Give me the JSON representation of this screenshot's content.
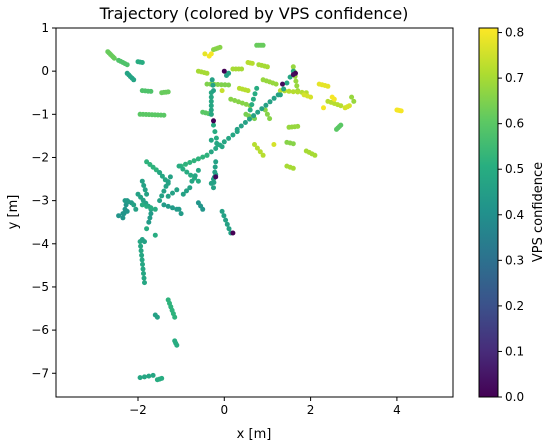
{
  "chart_data": {
    "type": "scatter",
    "title": "Trajectory (colored by VPS confidence)",
    "xlabel": "x [m]",
    "ylabel": "y [m]",
    "xlim": [
      -3.9,
      5.3
    ],
    "ylim": [
      -7.55,
      1.0
    ],
    "xticks": [
      -2,
      0,
      2,
      4
    ],
    "yticks": [
      1,
      0,
      -1,
      -2,
      -3,
      -4,
      -5,
      -6,
      -7
    ],
    "grid": false,
    "colorbar": {
      "label": "VPS confidence",
      "colormap": "viridis",
      "range": [
        0.0,
        0.81
      ],
      "ticks": [
        0.0,
        0.1,
        0.2,
        0.3,
        0.4,
        0.5,
        0.6,
        0.7,
        0.8
      ]
    },
    "segments": [
      {
        "from": [
          -2.7,
          0.45
        ],
        "to": [
          -2.55,
          0.3
        ],
        "n": 6,
        "c": 0.62
      },
      {
        "from": [
          -2.45,
          0.25
        ],
        "to": [
          -2.25,
          0.15
        ],
        "n": 5,
        "c": 0.58
      },
      {
        "from": [
          -2.25,
          -0.05
        ],
        "to": [
          -2.1,
          -0.2
        ],
        "n": 5,
        "c": 0.47
      },
      {
        "from": [
          -2.0,
          0.22
        ],
        "to": [
          -1.9,
          0.2
        ],
        "n": 3,
        "c": 0.5
      },
      {
        "from": [
          -1.9,
          -0.45
        ],
        "to": [
          -1.7,
          -0.47
        ],
        "n": 4,
        "c": 0.58
      },
      {
        "from": [
          -1.95,
          -1.0
        ],
        "to": [
          -1.4,
          -1.02
        ],
        "n": 9,
        "c": 0.6
      },
      {
        "from": [
          -1.45,
          -0.5
        ],
        "to": [
          -1.3,
          -0.48
        ],
        "n": 4,
        "c": 0.62
      },
      {
        "from": [
          -0.25,
          0.5
        ],
        "to": [
          -0.1,
          0.55
        ],
        "n": 4,
        "c": 0.66
      },
      {
        "from": [
          -0.6,
          0.0
        ],
        "to": [
          -0.4,
          -0.05
        ],
        "n": 4,
        "c": 0.7
      },
      {
        "from": [
          -0.3,
          0.4
        ],
        "to": [
          -0.35,
          0.35
        ],
        "n": 2,
        "c": 0.8
      },
      {
        "from": [
          0.75,
          0.6
        ],
        "to": [
          0.9,
          0.6
        ],
        "n": 4,
        "c": 0.62
      },
      {
        "from": [
          0.2,
          0.05
        ],
        "to": [
          0.4,
          0.05
        ],
        "n": 4,
        "c": 0.7
      },
      {
        "from": [
          0.55,
          0.2
        ],
        "to": [
          0.65,
          0.18
        ],
        "n": 3,
        "c": 0.72
      },
      {
        "from": [
          0.8,
          0.15
        ],
        "to": [
          1.0,
          0.1
        ],
        "n": 4,
        "c": 0.7
      },
      {
        "from": [
          0.9,
          -0.2
        ],
        "to": [
          1.2,
          -0.3
        ],
        "n": 5,
        "c": 0.68
      },
      {
        "from": [
          -0.4,
          -0.3
        ],
        "to": [
          0.1,
          -0.32
        ],
        "n": 7,
        "c": 0.65
      },
      {
        "from": [
          0.35,
          -0.4
        ],
        "to": [
          0.55,
          -0.45
        ],
        "n": 4,
        "c": 0.72
      },
      {
        "from": [
          0.15,
          -0.65
        ],
        "to": [
          0.6,
          -0.8
        ],
        "n": 6,
        "c": 0.66
      },
      {
        "from": [
          0.5,
          -1.0
        ],
        "to": [
          0.7,
          -1.1
        ],
        "n": 4,
        "c": 0.64
      },
      {
        "from": [
          -0.5,
          -0.95
        ],
        "to": [
          -0.3,
          -1.0
        ],
        "n": 4,
        "c": 0.6
      },
      {
        "from": [
          1.6,
          0.1
        ],
        "to": [
          1.7,
          -0.45
        ],
        "n": 6,
        "c": 0.68
      },
      {
        "from": [
          1.3,
          -0.45
        ],
        "to": [
          1.9,
          -0.5
        ],
        "n": 7,
        "c": 0.72
      },
      {
        "from": [
          1.85,
          -0.55
        ],
        "to": [
          2.0,
          -0.6
        ],
        "n": 3,
        "c": 0.76
      },
      {
        "from": [
          2.2,
          -0.3
        ],
        "to": [
          2.4,
          -0.35
        ],
        "n": 4,
        "c": 0.78
      },
      {
        "from": [
          2.4,
          -0.7
        ],
        "to": [
          2.7,
          -0.8
        ],
        "n": 5,
        "c": 0.72
      },
      {
        "from": [
          2.8,
          -0.85
        ],
        "to": [
          2.9,
          -0.8
        ],
        "n": 3,
        "c": 0.76
      },
      {
        "from": [
          2.95,
          -0.6
        ],
        "to": [
          3.0,
          -0.7
        ],
        "n": 2,
        "c": 0.68
      },
      {
        "from": [
          2.6,
          -1.35
        ],
        "to": [
          2.7,
          -1.25
        ],
        "n": 4,
        "c": 0.6
      },
      {
        "from": [
          4.0,
          -0.9
        ],
        "to": [
          4.1,
          -0.92
        ],
        "n": 4,
        "c": 0.8
      },
      {
        "from": [
          2.5,
          -0.6
        ],
        "to": [
          2.55,
          -0.65
        ],
        "n": 2,
        "c": 0.8
      },
      {
        "from": [
          1.5,
          -1.3
        ],
        "to": [
          1.7,
          -1.28
        ],
        "n": 4,
        "c": 0.68
      },
      {
        "from": [
          1.45,
          -1.65
        ],
        "to": [
          1.6,
          -1.68
        ],
        "n": 3,
        "c": 0.66
      },
      {
        "from": [
          1.9,
          -1.85
        ],
        "to": [
          2.1,
          -1.95
        ],
        "n": 4,
        "c": 0.7
      },
      {
        "from": [
          1.45,
          -2.2
        ],
        "to": [
          1.6,
          -2.25
        ],
        "n": 3,
        "c": 0.7
      },
      {
        "from": [
          0.7,
          -1.7
        ],
        "to": [
          0.9,
          -1.95
        ],
        "n": 4,
        "c": 0.72
      },
      {
        "from": [
          0.95,
          -0.9
        ],
        "to": [
          1.05,
          -1.1
        ],
        "n": 3,
        "c": 0.66
      },
      {
        "from": [
          -0.3,
          -0.5
        ],
        "to": [
          -0.3,
          -1.0
        ],
        "n": 6,
        "c": 0.48
      },
      {
        "from": [
          -0.25,
          -0.45
        ],
        "to": [
          -0.28,
          -0.2
        ],
        "n": 3,
        "c": 0.46
      },
      {
        "from": [
          0.05,
          -0.1
        ],
        "to": [
          0.1,
          -0.05
        ],
        "n": 2,
        "c": 0.46
      },
      {
        "from": [
          1.6,
          0.0
        ],
        "to": [
          1.3,
          -0.55
        ],
        "n": 5,
        "c": 0.48
      },
      {
        "from": [
          1.25,
          -0.55
        ],
        "to": [
          0.3,
          -1.35
        ],
        "n": 11,
        "c": 0.46
      },
      {
        "from": [
          0.75,
          -0.4
        ],
        "to": [
          0.6,
          -0.9
        ],
        "n": 5,
        "c": 0.5
      },
      {
        "from": [
          0.3,
          -1.4
        ],
        "to": [
          -0.4,
          -1.95
        ],
        "n": 8,
        "c": 0.48
      },
      {
        "from": [
          -0.4,
          -1.95
        ],
        "to": [
          -1.0,
          -2.2
        ],
        "n": 7,
        "c": 0.52
      },
      {
        "from": [
          -0.2,
          -2.1
        ],
        "to": [
          -0.25,
          -2.7
        ],
        "n": 6,
        "c": 0.46
      },
      {
        "from": [
          -0.25,
          -1.25
        ],
        "to": [
          -0.15,
          -1.7
        ],
        "n": 4,
        "c": 0.5
      },
      {
        "from": [
          -0.3,
          -1.6
        ],
        "to": [
          -0.05,
          -1.75
        ],
        "n": 3,
        "c": 0.48
      },
      {
        "from": [
          -1.8,
          -2.1
        ],
        "to": [
          -1.5,
          -2.35
        ],
        "n": 5,
        "c": 0.52
      },
      {
        "from": [
          -1.5,
          -2.35
        ],
        "to": [
          -1.3,
          -2.6
        ],
        "n": 4,
        "c": 0.48
      },
      {
        "from": [
          -1.05,
          -2.2
        ],
        "to": [
          -0.6,
          -2.55
        ],
        "n": 6,
        "c": 0.5
      },
      {
        "from": [
          -1.25,
          -2.45
        ],
        "to": [
          -1.5,
          -3.0
        ],
        "n": 6,
        "c": 0.46
      },
      {
        "from": [
          -1.4,
          -3.1
        ],
        "to": [
          -1.1,
          -3.2
        ],
        "n": 4,
        "c": 0.44
      },
      {
        "from": [
          -1.9,
          -2.55
        ],
        "to": [
          -1.8,
          -2.85
        ],
        "n": 4,
        "c": 0.46
      },
      {
        "from": [
          -2.0,
          -2.85
        ],
        "to": [
          -1.7,
          -3.2
        ],
        "n": 6,
        "c": 0.46
      },
      {
        "from": [
          -1.9,
          -3.1
        ],
        "to": [
          -1.6,
          -3.2
        ],
        "n": 4,
        "c": 0.5
      },
      {
        "from": [
          -2.25,
          -3.0
        ],
        "to": [
          -2.35,
          -3.4
        ],
        "n": 5,
        "c": 0.42
      },
      {
        "from": [
          -2.45,
          -3.35
        ],
        "to": [
          -2.25,
          -3.25
        ],
        "n": 3,
        "c": 0.42
      },
      {
        "from": [
          -2.3,
          -3.0
        ],
        "to": [
          -2.15,
          -3.05
        ],
        "n": 3,
        "c": 0.44
      },
      {
        "from": [
          -2.1,
          -3.1
        ],
        "to": [
          -2.05,
          -3.2
        ],
        "n": 2,
        "c": 0.46
      },
      {
        "from": [
          -1.7,
          -3.3
        ],
        "to": [
          -1.75,
          -3.5
        ],
        "n": 3,
        "c": 0.44
      },
      {
        "from": [
          -1.3,
          -2.9
        ],
        "to": [
          -1.1,
          -2.75
        ],
        "n": 3,
        "c": 0.46
      },
      {
        "from": [
          -1.05,
          -3.2
        ],
        "to": [
          -1.0,
          -3.3
        ],
        "n": 2,
        "c": 0.44
      },
      {
        "from": [
          -0.6,
          -3.05
        ],
        "to": [
          -0.5,
          -3.2
        ],
        "n": 3,
        "c": 0.42
      },
      {
        "from": [
          -0.95,
          -2.85
        ],
        "to": [
          -0.8,
          -2.7
        ],
        "n": 3,
        "c": 0.46
      },
      {
        "from": [
          -0.75,
          -2.55
        ],
        "to": [
          -0.6,
          -2.3
        ],
        "n": 3,
        "c": 0.48
      },
      {
        "from": [
          -0.3,
          -2.6
        ],
        "to": [
          -0.2,
          -2.4
        ],
        "n": 3,
        "c": 0.46
      },
      {
        "from": [
          -0.05,
          -3.25
        ],
        "to": [
          0.15,
          -3.75
        ],
        "n": 6,
        "c": 0.46
      },
      {
        "from": [
          -1.95,
          -3.95
        ],
        "to": [
          -1.85,
          -4.9
        ],
        "n": 10,
        "c": 0.48
      },
      {
        "from": [
          -1.9,
          -3.9
        ],
        "to": [
          -1.85,
          -3.95
        ],
        "n": 2,
        "c": 0.46
      },
      {
        "from": [
          -1.3,
          -5.3
        ],
        "to": [
          -1.15,
          -5.7
        ],
        "n": 6,
        "c": 0.52
      },
      {
        "from": [
          -1.15,
          -6.25
        ],
        "to": [
          -1.1,
          -6.35
        ],
        "n": 3,
        "c": 0.5
      },
      {
        "from": [
          -1.95,
          -7.1
        ],
        "to": [
          -1.65,
          -7.05
        ],
        "n": 4,
        "c": 0.48
      },
      {
        "from": [
          -1.55,
          -7.15
        ],
        "to": [
          -1.45,
          -7.12
        ],
        "n": 3,
        "c": 0.5
      },
      {
        "from": [
          -1.6,
          -5.65
        ],
        "to": [
          -1.55,
          -5.7
        ],
        "n": 2,
        "c": 0.46
      },
      {
        "from": [
          -1.8,
          -3.65
        ],
        "to": [
          -1.6,
          -3.8
        ],
        "n": 2,
        "c": 0.5
      }
    ],
    "singles": [
      {
        "x": 0.0,
        "y": 0.0,
        "c": 0.0
      },
      {
        "x": 1.65,
        "y": -0.05,
        "c": 0.0
      },
      {
        "x": 1.6,
        "y": -0.08,
        "c": 0.02
      },
      {
        "x": 1.35,
        "y": -0.3,
        "c": 0.02
      },
      {
        "x": -0.25,
        "y": -1.15,
        "c": 0.0
      },
      {
        "x": -0.2,
        "y": -2.45,
        "c": 0.02
      },
      {
        "x": 0.2,
        "y": -3.75,
        "c": 0.0
      },
      {
        "x": -0.45,
        "y": 0.4,
        "c": 0.78
      },
      {
        "x": 2.3,
        "y": -0.85,
        "c": 0.8
      },
      {
        "x": -0.05,
        "y": -0.45,
        "c": 0.74
      },
      {
        "x": 1.15,
        "y": -1.7,
        "c": 0.76
      }
    ]
  }
}
